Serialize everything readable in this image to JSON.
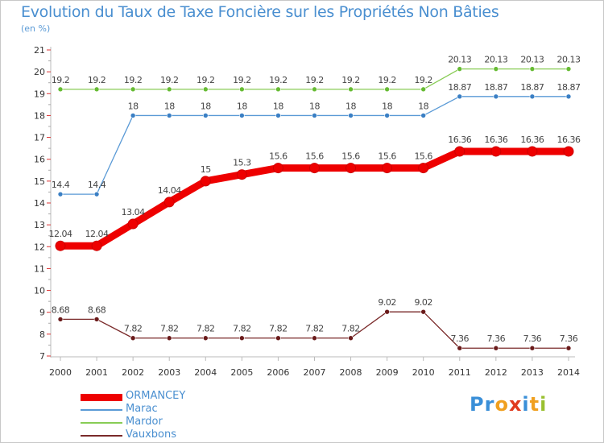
{
  "title": "Evolution du Taux de Taxe Foncière sur les Propriétés Non Bâties",
  "subtitle": "(en %)",
  "logo": {
    "text": "Proxiti",
    "letters": [
      "P",
      "r",
      "o",
      "x",
      "i",
      "t",
      "i"
    ],
    "colors": [
      "#3a8fd8",
      "#3a8fd8",
      "#f0a020",
      "#e03a1e",
      "#3a8fd8",
      "#f0a020",
      "#9ac030"
    ]
  },
  "chart_data": {
    "type": "line",
    "title": "Evolution du Taux de Taxe Foncière sur les Propriétés Non Bâties",
    "ylabel": "(en %)",
    "xlabel": "",
    "ylim": [
      7,
      21
    ],
    "yticks": [
      "7",
      "8",
      "9",
      "10",
      "11",
      "12",
      "13",
      "14",
      "15",
      "16",
      "17",
      "18",
      "19",
      "20",
      "21"
    ],
    "categories": [
      "2000",
      "2001",
      "2002",
      "2003",
      "2004",
      "2005",
      "2006",
      "2007",
      "2008",
      "2009",
      "2010",
      "2011",
      "2012",
      "2013",
      "2014"
    ],
    "grid": false,
    "legend_position": "bottom-left",
    "series": [
      {
        "name": "Mardor",
        "color": "#88cc55",
        "marker": "#66bb33",
        "labels": [
          "19.2",
          "19.2",
          "19.2",
          "19.2",
          "19.2",
          "19.2",
          "19.2",
          "19.2",
          "19.2",
          "19.2",
          "19.2",
          "20.13",
          "20.13",
          "20.13",
          "20.13"
        ],
        "values": [
          19.2,
          19.2,
          19.2,
          19.2,
          19.2,
          19.2,
          19.2,
          19.2,
          19.2,
          19.2,
          19.2,
          20.13,
          20.13,
          20.13,
          20.13
        ]
      },
      {
        "name": "Marac",
        "color": "#5a9ad6",
        "marker": "#3a7fc4",
        "labels": [
          "14.4",
          "14.4",
          "18",
          "18",
          "18",
          "18",
          "18",
          "18",
          "18",
          "18",
          "18",
          "18.87",
          "18.87",
          "18.87",
          "18.87"
        ],
        "values": [
          14.4,
          14.4,
          18,
          18,
          18,
          18,
          18,
          18,
          18,
          18,
          18,
          18.87,
          18.87,
          18.87,
          18.87
        ]
      },
      {
        "name": "ORMANCEY",
        "color": "#ee0000",
        "marker": "#ee0000",
        "labels": [
          "12.04",
          "12.04",
          "13.04",
          "14.04",
          "15",
          "15.3",
          "15.6",
          "15.6",
          "15.6",
          "15.6",
          "15.6",
          "16.36",
          "16.36",
          "16.36",
          "16.36"
        ],
        "values": [
          12.04,
          12.04,
          13.04,
          14.04,
          15,
          15.3,
          15.6,
          15.6,
          15.6,
          15.6,
          15.6,
          16.36,
          16.36,
          16.36,
          16.36
        ]
      },
      {
        "name": "Vauxbons",
        "color": "#7a2a2a",
        "marker": "#6a1a1a",
        "labels": [
          "8.68",
          "8.68",
          "7.82",
          "7.82",
          "7.82",
          "7.82",
          "7.82",
          "7.82",
          "7.82",
          "9.02",
          "9.02",
          "7.36",
          "7.36",
          "7.36",
          "7.36"
        ],
        "values": [
          8.68,
          8.68,
          7.82,
          7.82,
          7.82,
          7.82,
          7.82,
          7.82,
          7.82,
          9.02,
          9.02,
          7.36,
          7.36,
          7.36,
          7.36
        ]
      }
    ]
  },
  "legend": [
    {
      "name": "ORMANCEY",
      "color": "#ee0000"
    },
    {
      "name": "Marac",
      "color": "#5a9ad6"
    },
    {
      "name": "Mardor",
      "color": "#88cc55"
    },
    {
      "name": "Vauxbons",
      "color": "#7a2a2a"
    }
  ]
}
